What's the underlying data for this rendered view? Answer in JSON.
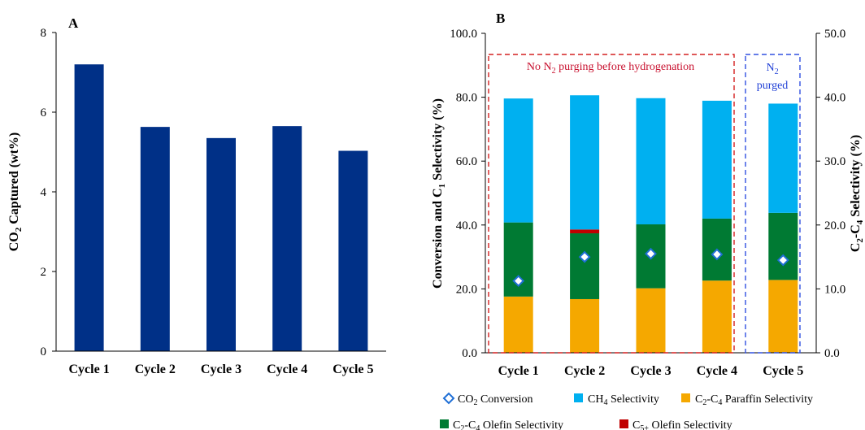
{
  "chart_data": [
    {
      "panel": "A",
      "type": "bar",
      "categories": [
        "Cycle 1",
        "Cycle 2",
        "Cycle 3",
        "Cycle 4",
        "Cycle 5"
      ],
      "values": [
        7.2,
        5.63,
        5.35,
        5.65,
        5.03
      ],
      "ylabel": "CO2 Captured (wt%)",
      "ylim": [
        0,
        8
      ],
      "yticks": [
        "0",
        "2",
        "4",
        "6",
        "8"
      ],
      "grid": false,
      "color": "#003087"
    },
    {
      "panel": "B",
      "type": "bar",
      "stacked": true,
      "categories": [
        "Cycle 1",
        "Cycle 2",
        "Cycle 3",
        "Cycle 4",
        "Cycle 5"
      ],
      "ylabel_left": "Conversion and C1 Selectivity (%)",
      "ylabel_right": "C2-C4 Selectivity (%)",
      "ylim_left": [
        0,
        100
      ],
      "ylim_right": [
        0,
        50
      ],
      "yticks_left": [
        "0.0",
        "20.0",
        "40.0",
        "60.0",
        "80.0",
        "100.0"
      ],
      "yticks_right": [
        "0.0",
        "10.0",
        "20.0",
        "30.0",
        "40.0",
        "50.0"
      ],
      "series": [
        {
          "name": "C2-C4 Paraffin Selectivity",
          "axis": "right",
          "color": "#f5a800",
          "values": [
            8.8,
            8.4,
            10.1,
            11.3,
            11.4
          ]
        },
        {
          "name": "C2-C4 Olefin Selectivity",
          "axis": "right",
          "color": "#007a33",
          "values": [
            11.6,
            10.3,
            10.0,
            9.7,
            10.5
          ]
        },
        {
          "name": "C5+ Olefin Selectivity",
          "axis": "right",
          "color": "#c00000",
          "values": [
            0.0,
            0.6,
            0.0,
            0.0,
            0.0
          ]
        },
        {
          "name": "CH4 Selectivity",
          "axis": "left",
          "color": "#00b0f0",
          "values": [
            38.8,
            42.0,
            39.5,
            36.9,
            34.2
          ]
        }
      ],
      "markers": {
        "name": "CO2 Conversion",
        "axis": "left",
        "marker": "diamond",
        "color": "#1f6fd6",
        "values": [
          22.5,
          30.0,
          31.0,
          30.8,
          29.0
        ]
      },
      "legend_position": "bottom",
      "annotations": [
        {
          "text": "No N2 purging before hydrogenation",
          "color": "#c8102e",
          "box": "dashed",
          "covers": [
            "Cycle 1",
            "Cycle 2",
            "Cycle 3",
            "Cycle 4"
          ]
        },
        {
          "text_line1": "N2",
          "text_line2": "purged",
          "color": "#1f3fd6",
          "box": "dashed",
          "covers": [
            "Cycle 5"
          ]
        }
      ],
      "legend": {
        "co2_conversion": "CO2 Conversion",
        "ch4": "CH4 Selectivity",
        "paraffin": "C2-C4 Paraffin Selectivity",
        "olefin": "C2-C4 Olefin Selectivity",
        "c5": "C5+ Olefin Selectivity"
      }
    }
  ]
}
